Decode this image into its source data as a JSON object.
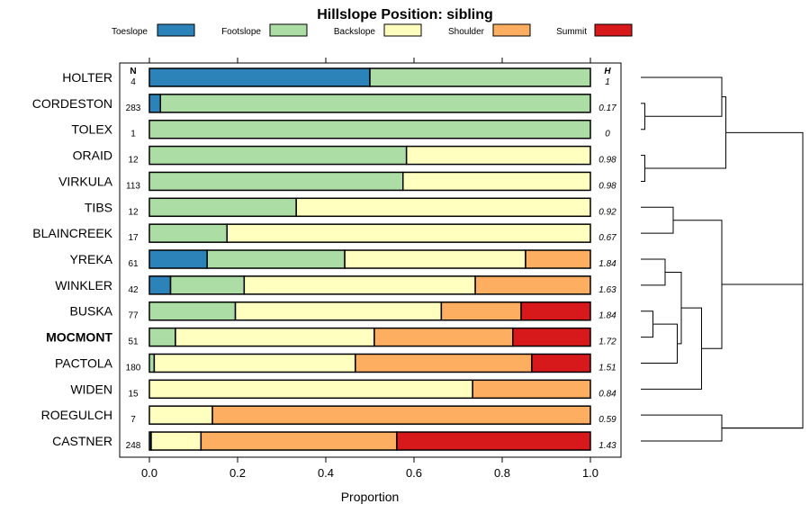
{
  "chart_data": {
    "type": "bar",
    "orientation": "horizontal-stacked",
    "title": "Hillslope Position: sibling",
    "xlabel": "Proportion",
    "xlim": [
      0,
      1
    ],
    "xticks": [
      "0.0",
      "0.2",
      "0.4",
      "0.6",
      "0.8",
      "1.0"
    ],
    "xtick_values": [
      0,
      0.2,
      0.4,
      0.6,
      0.8,
      1.0
    ],
    "n_header": "N",
    "h_header": "H",
    "legend": [
      {
        "name": "Toeslope",
        "color": "#2b83ba"
      },
      {
        "name": "Footslope",
        "color": "#abdda4"
      },
      {
        "name": "Backslope",
        "color": "#ffffbf"
      },
      {
        "name": "Shoulder",
        "color": "#fdae61"
      },
      {
        "name": "Summit",
        "color": "#d7191c"
      }
    ],
    "highlight": "MOCMONT",
    "rows": [
      {
        "label": "HOLTER",
        "n": "4",
        "h": "1",
        "values": [
          0.5,
          0.5,
          0,
          0,
          0
        ]
      },
      {
        "label": "CORDESTON",
        "n": "283",
        "h": "0.17",
        "values": [
          0.025,
          0.975,
          0,
          0,
          0
        ]
      },
      {
        "label": "TOLEX",
        "n": "1",
        "h": "0",
        "values": [
          0,
          1,
          0,
          0,
          0
        ]
      },
      {
        "label": "ORAID",
        "n": "12",
        "h": "0.98",
        "values": [
          0,
          0.583,
          0.417,
          0,
          0
        ]
      },
      {
        "label": "VIRKULA",
        "n": "113",
        "h": "0.98",
        "values": [
          0,
          0.575,
          0.425,
          0,
          0
        ]
      },
      {
        "label": "TIBS",
        "n": "12",
        "h": "0.92",
        "values": [
          0,
          0.333,
          0.667,
          0,
          0
        ]
      },
      {
        "label": "BLAINCREEK",
        "n": "17",
        "h": "0.67",
        "values": [
          0,
          0.176,
          0.824,
          0,
          0
        ]
      },
      {
        "label": "YREKA",
        "n": "61",
        "h": "1.84",
        "values": [
          0.131,
          0.312,
          0.41,
          0.147,
          0
        ]
      },
      {
        "label": "WINKLER",
        "n": "42",
        "h": "1.63",
        "values": [
          0.048,
          0.167,
          0.524,
          0.261,
          0
        ]
      },
      {
        "label": "BUSKA",
        "n": "77",
        "h": "1.84",
        "values": [
          0,
          0.195,
          0.467,
          0.181,
          0.157
        ]
      },
      {
        "label": "MOCMONT",
        "n": "51",
        "h": "1.72",
        "values": [
          0,
          0.059,
          0.451,
          0.314,
          0.176
        ]
      },
      {
        "label": "PACTOLA",
        "n": "180",
        "h": "1.51",
        "values": [
          0,
          0.011,
          0.456,
          0.4,
          0.133
        ]
      },
      {
        "label": "WIDEN",
        "n": "15",
        "h": "0.84",
        "values": [
          0,
          0,
          0.733,
          0.267,
          0
        ]
      },
      {
        "label": "ROEGULCH",
        "n": "7",
        "h": "0.59",
        "values": [
          0,
          0,
          0.143,
          0.857,
          0
        ]
      },
      {
        "label": "CASTNER",
        "n": "248",
        "h": "1.43",
        "values": [
          0.004,
          0,
          0.113,
          0.444,
          0.439
        ]
      }
    ],
    "dendrogram": {
      "merges": [
        {
          "a": 1,
          "b": 2,
          "height": 0.01
        },
        {
          "a": 3,
          "b": 4,
          "height": 0.01
        },
        {
          "a": 1.5,
          "b": 0,
          "height": 0.2
        },
        {
          "a": 0.75,
          "b": 3.5,
          "height": 0.21
        },
        {
          "a": 5,
          "b": 6,
          "height": 0.08
        },
        {
          "a": 9,
          "b": 10,
          "height": 0.03
        },
        {
          "a": 9.5,
          "b": 11,
          "height": 0.09
        },
        {
          "a": 7,
          "b": 8,
          "height": 0.06
        },
        {
          "a": 7.5,
          "b": 10.25,
          "height": 0.1
        },
        {
          "a": 8.875,
          "b": 12,
          "height": 0.15
        },
        {
          "a": 5.5,
          "b": 10.4375,
          "height": 0.2
        },
        {
          "a": 13,
          "b": 14,
          "height": 0.2
        },
        {
          "a": 2.125,
          "b": 13.5,
          "height": 0.4
        },
        {
          "a": 7.96875,
          "b": 13.5,
          "height": 0.4
        }
      ]
    }
  }
}
